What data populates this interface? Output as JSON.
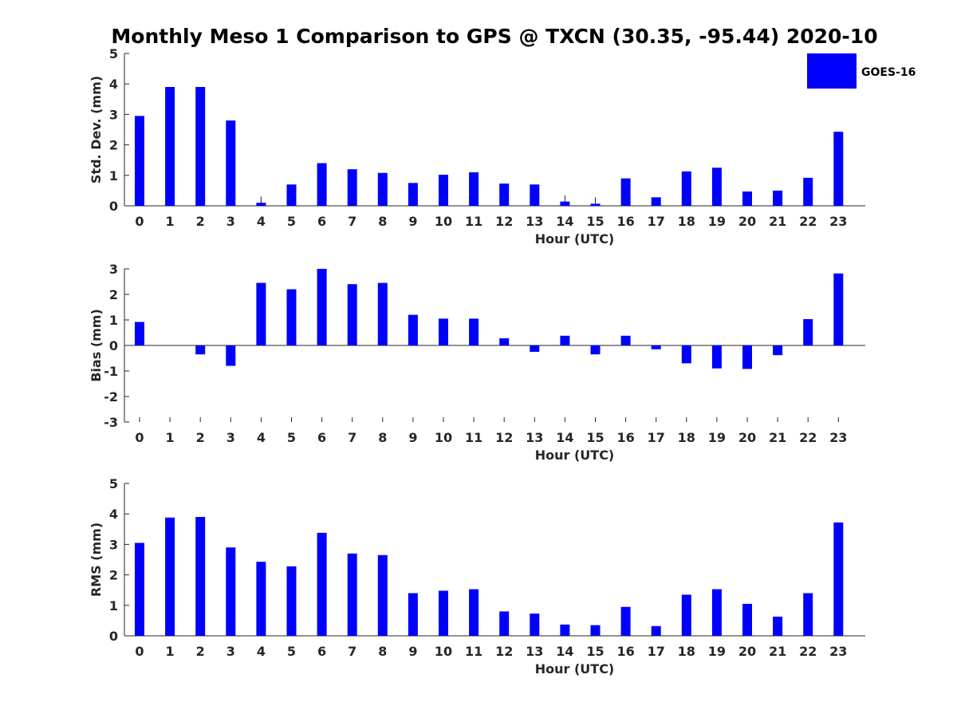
{
  "title": "Monthly Meso 1 Comparison to GPS @ TXCN (30.35, -95.44) 2020-10",
  "legend": {
    "label": "GOES-16",
    "color": "#0000ff"
  },
  "chart_data": [
    {
      "type": "bar",
      "name": "std-dev",
      "title": "",
      "xlabel": "Hour (UTC)",
      "ylabel": "Std. Dev. (mm)",
      "ylim": [
        0,
        5
      ],
      "yticks": [
        0,
        1,
        2,
        3,
        4,
        5
      ],
      "categories": [
        "0",
        "1",
        "2",
        "3",
        "4",
        "5",
        "6",
        "7",
        "8",
        "9",
        "10",
        "11",
        "12",
        "13",
        "14",
        "15",
        "16",
        "17",
        "18",
        "19",
        "20",
        "21",
        "22",
        "23"
      ],
      "values": [
        2.95,
        3.9,
        3.9,
        2.8,
        0.1,
        0.7,
        1.4,
        1.2,
        1.08,
        0.75,
        1.02,
        1.1,
        0.73,
        0.7,
        0.14,
        0.07,
        0.9,
        0.28,
        1.13,
        1.25,
        0.47,
        0.5,
        0.92,
        2.43
      ],
      "markers": [
        4,
        14,
        15
      ],
      "color": "#0000ff"
    },
    {
      "type": "bar",
      "name": "bias",
      "title": "",
      "xlabel": "Hour (UTC)",
      "ylabel": "Bias (mm)",
      "ylim": [
        -3,
        3
      ],
      "yticks": [
        -3,
        -2,
        -1,
        0,
        1,
        2,
        3
      ],
      "categories": [
        "0",
        "1",
        "2",
        "3",
        "4",
        "5",
        "6",
        "7",
        "8",
        "9",
        "10",
        "11",
        "12",
        "13",
        "14",
        "15",
        "16",
        "17",
        "18",
        "19",
        "20",
        "21",
        "22",
        "23"
      ],
      "values": [
        0.92,
        0.0,
        -0.35,
        -0.8,
        2.45,
        2.2,
        3.0,
        2.4,
        2.45,
        1.2,
        1.05,
        1.05,
        0.28,
        -0.25,
        0.38,
        -0.35,
        0.38,
        -0.15,
        -0.7,
        -0.9,
        -0.92,
        -0.38,
        1.03,
        2.82
      ],
      "markers": [],
      "color": "#0000ff"
    },
    {
      "type": "bar",
      "name": "rms",
      "title": "",
      "xlabel": "Hour (UTC)",
      "ylabel": "RMS (mm)",
      "ylim": [
        0,
        5
      ],
      "yticks": [
        0,
        1,
        2,
        3,
        4,
        5
      ],
      "categories": [
        "0",
        "1",
        "2",
        "3",
        "4",
        "5",
        "6",
        "7",
        "8",
        "9",
        "10",
        "11",
        "12",
        "13",
        "14",
        "15",
        "16",
        "17",
        "18",
        "19",
        "20",
        "21",
        "22",
        "23"
      ],
      "values": [
        3.05,
        3.88,
        3.9,
        2.9,
        2.43,
        2.28,
        3.38,
        2.7,
        2.65,
        1.4,
        1.48,
        1.53,
        0.8,
        0.73,
        0.37,
        0.35,
        0.95,
        0.32,
        1.35,
        1.53,
        1.05,
        0.63,
        1.4,
        3.72
      ],
      "markers": [],
      "color": "#0000ff"
    }
  ]
}
